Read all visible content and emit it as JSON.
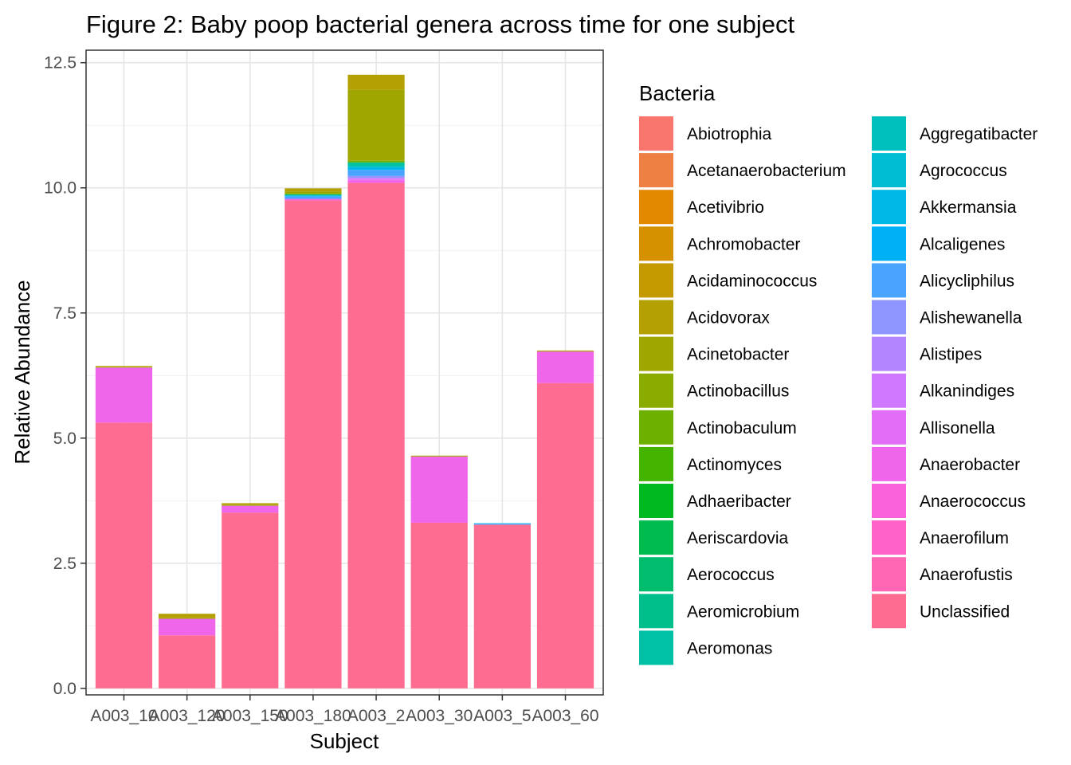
{
  "chart_data": {
    "type": "bar",
    "stacked": true,
    "title": "Figure 2: Baby poop bacterial genera across time for one subject",
    "xlabel": "Subject",
    "ylabel": "Relative Abundance",
    "ylim": [
      -0.13,
      12.75
    ],
    "yticks": [
      0.0,
      2.5,
      5.0,
      7.5,
      10.0,
      12.5
    ],
    "ytick_labels": [
      "0.0",
      "2.5",
      "5.0",
      "7.5",
      "10.0",
      "12.5"
    ],
    "grid": true,
    "legend_position": "right",
    "legend_title": "Bacteria",
    "categories": [
      "A003_10",
      "A003_120",
      "A003_150",
      "A003_180",
      "A003_2",
      "A003_30",
      "A003_5",
      "A003_60"
    ],
    "series": [
      {
        "name": "Abiotrophia",
        "color": "#F8766D",
        "values": [
          0,
          0,
          0,
          0,
          0,
          0,
          0,
          0
        ]
      },
      {
        "name": "Acetanaerobacterium",
        "color": "#EE8044",
        "values": [
          0,
          0,
          0,
          0,
          0,
          0,
          0,
          0
        ]
      },
      {
        "name": "Acetivibrio",
        "color": "#E38900",
        "values": [
          0,
          0,
          0,
          0,
          0,
          0,
          0,
          0
        ]
      },
      {
        "name": "Achromobacter",
        "color": "#D59100",
        "values": [
          0,
          0,
          0,
          0,
          0,
          0,
          0,
          0
        ]
      },
      {
        "name": "Acidaminococcus",
        "color": "#C59900",
        "values": [
          0,
          0,
          0,
          0,
          0,
          0,
          0,
          0
        ]
      },
      {
        "name": "Acidovorax",
        "color": "#B4A000",
        "values": [
          0.02,
          0.08,
          0.03,
          0.06,
          0.3,
          0.01,
          0,
          0.02
        ]
      },
      {
        "name": "Acinetobacter",
        "color": "#A0A600",
        "values": [
          0.01,
          0.02,
          0.02,
          0.04,
          1.42,
          0.01,
          0,
          0
        ]
      },
      {
        "name": "Actinobacillus",
        "color": "#8AAB00",
        "values": [
          0,
          0,
          0,
          0,
          0,
          0,
          0,
          0
        ]
      },
      {
        "name": "Actinobaculum",
        "color": "#6EB000",
        "values": [
          0,
          0,
          0,
          0.02,
          0.03,
          0,
          0,
          0
        ]
      },
      {
        "name": "Actinomyces",
        "color": "#45B400",
        "values": [
          0,
          0,
          0,
          0,
          0,
          0,
          0,
          0
        ]
      },
      {
        "name": "Adhaeribacter",
        "color": "#00B81F",
        "values": [
          0,
          0,
          0,
          0,
          0,
          0,
          0,
          0
        ]
      },
      {
        "name": "Aeriscardovia",
        "color": "#00BB4E",
        "values": [
          0,
          0,
          0,
          0,
          0,
          0,
          0,
          0
        ]
      },
      {
        "name": "Aerococcus",
        "color": "#00BD6E",
        "values": [
          0,
          0,
          0,
          0,
          0,
          0,
          0,
          0
        ]
      },
      {
        "name": "Aeromicrobium",
        "color": "#00BF8B",
        "values": [
          0,
          0,
          0,
          0.02,
          0.03,
          0,
          0,
          0
        ]
      },
      {
        "name": "Aeromonas",
        "color": "#00C0A5",
        "values": [
          0,
          0,
          0,
          0,
          0.04,
          0,
          0,
          0
        ]
      },
      {
        "name": "Aggregatibacter",
        "color": "#00C0BE",
        "values": [
          0,
          0,
          0,
          0,
          0.03,
          0,
          0,
          0
        ]
      },
      {
        "name": "Agrococcus",
        "color": "#00BDD4",
        "values": [
          0,
          0,
          0,
          0,
          0,
          0,
          0,
          0
        ]
      },
      {
        "name": "Akkermansia",
        "color": "#00B8E7",
        "values": [
          0,
          0,
          0,
          0.02,
          0.05,
          0,
          0.01,
          0
        ]
      },
      {
        "name": "Alcaligenes",
        "color": "#00B0F6",
        "values": [
          0,
          0,
          0,
          0,
          0,
          0,
          0,
          0
        ]
      },
      {
        "name": "Alicycliphilus",
        "color": "#48A4FF",
        "values": [
          0,
          0,
          0,
          0.05,
          0.12,
          0,
          0.02,
          0
        ]
      },
      {
        "name": "Alishewanella",
        "color": "#8F95FF",
        "values": [
          0,
          0,
          0,
          0,
          0.04,
          0,
          0,
          0
        ]
      },
      {
        "name": "Alistipes",
        "color": "#B385FF",
        "values": [
          0,
          0,
          0,
          0,
          0,
          0,
          0,
          0
        ]
      },
      {
        "name": "Alkanindiges",
        "color": "#CE79FF",
        "values": [
          0,
          0,
          0,
          0,
          0.03,
          0,
          0,
          0
        ]
      },
      {
        "name": "Allisonella",
        "color": "#E26EF7",
        "values": [
          0,
          0,
          0,
          0,
          0.01,
          0,
          0,
          0
        ]
      },
      {
        "name": "Anaerobacter",
        "color": "#F066EA",
        "values": [
          1.1,
          0.33,
          0.14,
          0.03,
          0.06,
          1.32,
          0,
          0.63
        ]
      },
      {
        "name": "Anaerococcus",
        "color": "#FA62DB",
        "values": [
          0,
          0,
          0,
          0,
          0,
          0,
          0,
          0
        ]
      },
      {
        "name": "Anaerofilum",
        "color": "#FF62C9",
        "values": [
          0,
          0,
          0,
          0,
          0,
          0,
          0,
          0
        ]
      },
      {
        "name": "Anaerofustis",
        "color": "#FF66B3",
        "values": [
          0,
          0,
          0,
          0,
          0,
          0,
          0,
          0
        ]
      },
      {
        "name": "Unclassified",
        "color": "#FF6C91",
        "values": [
          5.31,
          1.06,
          3.51,
          9.75,
          10.1,
          3.31,
          3.27,
          6.1
        ]
      }
    ]
  }
}
